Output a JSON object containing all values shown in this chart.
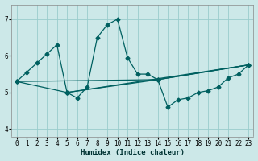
{
  "xlabel": "Humidex (Indice chaleur)",
  "bg_color": "#cce8e8",
  "grid_color": "#99cccc",
  "line_color": "#006060",
  "xlim": [
    -0.5,
    23.5
  ],
  "ylim": [
    3.8,
    7.4
  ],
  "xticks": [
    0,
    1,
    2,
    3,
    4,
    5,
    6,
    7,
    8,
    9,
    10,
    11,
    12,
    13,
    14,
    15,
    16,
    17,
    18,
    19,
    20,
    21,
    22,
    23
  ],
  "yticks": [
    4,
    5,
    6,
    7
  ],
  "line1_x": [
    0,
    1,
    2,
    3,
    4,
    5,
    6,
    7,
    8,
    9,
    10,
    11,
    12,
    13,
    14,
    15,
    16,
    17,
    18,
    19,
    20,
    21,
    22,
    23
  ],
  "line1_y": [
    5.3,
    5.55,
    5.8,
    6.05,
    6.3,
    5.0,
    4.85,
    5.15,
    6.5,
    6.85,
    7.0,
    5.95,
    5.5,
    5.5,
    5.35,
    4.6,
    4.8,
    4.85,
    5.0,
    5.05,
    5.15,
    5.4,
    5.5,
    5.75
  ],
  "line2_x": [
    0,
    5,
    23
  ],
  "line2_y": [
    5.3,
    5.0,
    5.75
  ],
  "line3_x": [
    0,
    14,
    23
  ],
  "line3_y": [
    5.3,
    5.35,
    5.75
  ],
  "line4_x": [
    5,
    14,
    23
  ],
  "line4_y": [
    5.0,
    5.35,
    5.75
  ],
  "tick_fontsize": 5.5,
  "xlabel_fontsize": 6.5
}
